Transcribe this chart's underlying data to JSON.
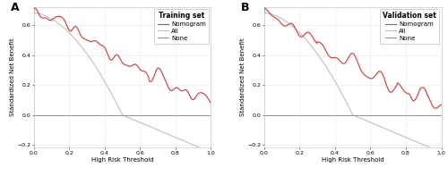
{
  "title_A": "Training set",
  "title_B": "Validation set",
  "xlabel": "High Risk Threshold",
  "ylabel": "Standardized Net Benefit",
  "xlim": [
    0.0,
    1.0
  ],
  "ylim": [
    -0.22,
    0.72
  ],
  "xticks": [
    0.0,
    0.2,
    0.4,
    0.6,
    0.8,
    1.0
  ],
  "yticks": [
    -0.2,
    0.0,
    0.2,
    0.4,
    0.6
  ],
  "legend_title_A": "Training set",
  "legend_title_B": "Validation set",
  "nomogram_color": "#d94040",
  "all_color": "#c0c0c0",
  "none_color": "#909090",
  "background": "#ffffff",
  "grid_color": "#e8e8e8",
  "panel_label_fontsize": 9,
  "axis_label_fontsize": 5,
  "tick_fontsize": 4.5,
  "legend_fontsize": 5,
  "legend_title_fontsize": 5.5
}
